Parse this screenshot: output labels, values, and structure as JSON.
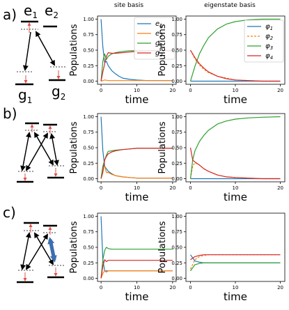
{
  "column_titles": [
    "site basis",
    "eigenstate basis"
  ],
  "row_labels": [
    "a)",
    "b)",
    "c)"
  ],
  "level_labels": {
    "e1": "e",
    "e1_sub": "1",
    "e2": "e",
    "e2_sub": "2",
    "g1": "g",
    "g1_sub": "1",
    "g2": "g",
    "g2_sub": "2"
  },
  "colors": {
    "blue": "#1f77b4",
    "orange": "#ff7f0e",
    "green": "#2ca02c",
    "red": "#d62728",
    "pump_red": "#e0504a",
    "thick_arrow": "#3d6fb0"
  },
  "legends": {
    "site": [
      "e_1",
      "e_2",
      "g_1",
      "g_2"
    ],
    "eigen": [
      "φ_1",
      "φ_2",
      "φ_3",
      "φ_4"
    ]
  },
  "chart_data": [
    {
      "id": "a-site",
      "type": "line",
      "title": "site basis",
      "xlabel": "time",
      "ylabel": "Populations",
      "xlim": [
        -1,
        21
      ],
      "ylim": [
        -0.05,
        1.05
      ],
      "xticks": [
        0,
        10,
        20
      ],
      "yticks": [
        0.0,
        0.25,
        0.5,
        0.75,
        1.0
      ],
      "legend": "top-right",
      "series": [
        {
          "name": "e_1",
          "color": "blue",
          "x": [
            0,
            0.5,
            1,
            1.5,
            2,
            3,
            4,
            5,
            6,
            8,
            10,
            13,
            16,
            20
          ],
          "y": [
            1.0,
            0.55,
            0.3,
            0.32,
            0.25,
            0.17,
            0.12,
            0.08,
            0.05,
            0.03,
            0.02,
            0.01,
            0.01,
            0.01
          ]
        },
        {
          "name": "e_2",
          "color": "orange",
          "x": [
            0,
            1,
            2,
            4,
            8,
            12,
            20
          ],
          "y": [
            0.0,
            0.02,
            0.01,
            0.01,
            0.01,
            0.01,
            0.01
          ]
        },
        {
          "name": "g_1",
          "color": "green",
          "x": [
            0,
            0.5,
            1,
            1.5,
            2,
            3,
            4,
            6,
            8,
            10,
            13,
            16,
            20
          ],
          "y": [
            0.0,
            0.32,
            0.44,
            0.35,
            0.4,
            0.44,
            0.46,
            0.48,
            0.49,
            0.49,
            0.49,
            0.49,
            0.49
          ]
        },
        {
          "name": "g_2",
          "color": "red",
          "x": [
            0,
            0.5,
            1,
            1.5,
            2,
            3,
            4,
            6,
            8,
            10,
            13,
            16,
            20
          ],
          "y": [
            0.0,
            0.15,
            0.28,
            0.4,
            0.46,
            0.45,
            0.45,
            0.46,
            0.47,
            0.48,
            0.49,
            0.49,
            0.49
          ]
        }
      ]
    },
    {
      "id": "a-eigen",
      "type": "line",
      "title": "eigenstate basis",
      "xlabel": "time",
      "ylabel": "Populations",
      "xlim": [
        -1,
        21
      ],
      "ylim": [
        -0.05,
        1.05
      ],
      "xticks": [
        0,
        10,
        20
      ],
      "yticks": [
        0.0,
        0.25,
        0.5,
        0.75,
        1.0
      ],
      "legend": "right",
      "series": [
        {
          "name": "φ_1",
          "color": "blue",
          "x": [
            0,
            20
          ],
          "y": [
            0.0,
            0.0
          ]
        },
        {
          "name": "φ_2",
          "color": "orange",
          "dashed": true,
          "x": [
            0,
            1,
            2,
            3,
            4,
            6,
            8,
            10,
            13,
            16,
            20
          ],
          "y": [
            0.5,
            0.36,
            0.26,
            0.19,
            0.14,
            0.08,
            0.05,
            0.02,
            0.01,
            0.0,
            0.0
          ]
        },
        {
          "name": "φ_3",
          "color": "green",
          "x": [
            0,
            1,
            2,
            3,
            4,
            6,
            8,
            10,
            13,
            16,
            20
          ],
          "y": [
            0.0,
            0.24,
            0.44,
            0.58,
            0.7,
            0.84,
            0.92,
            0.96,
            0.99,
            1.0,
            1.0
          ]
        },
        {
          "name": "φ_4",
          "color": "red",
          "x": [
            0,
            1,
            2,
            3,
            4,
            6,
            8,
            10,
            13,
            16,
            20
          ],
          "y": [
            0.5,
            0.38,
            0.28,
            0.21,
            0.15,
            0.08,
            0.04,
            0.02,
            0.01,
            0.0,
            0.0
          ]
        }
      ]
    },
    {
      "id": "b-site",
      "type": "line",
      "xlabel": "time",
      "ylabel": "Populations",
      "xlim": [
        -1,
        21
      ],
      "ylim": [
        -0.05,
        1.05
      ],
      "xticks": [
        0,
        10,
        20
      ],
      "yticks": [
        0.0,
        0.25,
        0.5,
        0.75,
        1.0
      ],
      "series": [
        {
          "name": "e_1",
          "color": "blue",
          "x": [
            0,
            0.5,
            1,
            1.5,
            2,
            3,
            4,
            6,
            8,
            10,
            13,
            16,
            20
          ],
          "y": [
            1.0,
            0.45,
            0.2,
            0.16,
            0.12,
            0.08,
            0.05,
            0.03,
            0.02,
            0.01,
            0.01,
            0.01,
            0.01
          ]
        },
        {
          "name": "e_2",
          "color": "orange",
          "x": [
            0,
            0.5,
            1,
            1.5,
            2,
            3,
            4,
            6,
            8,
            10,
            13,
            16,
            20
          ],
          "y": [
            0.0,
            0.2,
            0.2,
            0.1,
            0.1,
            0.07,
            0.05,
            0.03,
            0.02,
            0.01,
            0.01,
            0.01,
            0.01
          ]
        },
        {
          "name": "g_1",
          "color": "green",
          "x": [
            0,
            0.5,
            1,
            1.5,
            2,
            3,
            4,
            6,
            8,
            10,
            13,
            16,
            20
          ],
          "y": [
            0.0,
            0.2,
            0.3,
            0.38,
            0.44,
            0.45,
            0.46,
            0.47,
            0.48,
            0.49,
            0.49,
            0.49,
            0.49
          ]
        },
        {
          "name": "g_2",
          "color": "red",
          "x": [
            0,
            0.5,
            1,
            1.5,
            2,
            3,
            4,
            6,
            8,
            10,
            13,
            16,
            20
          ],
          "y": [
            0.0,
            0.1,
            0.3,
            0.36,
            0.4,
            0.43,
            0.45,
            0.47,
            0.48,
            0.49,
            0.49,
            0.49,
            0.49
          ]
        }
      ]
    },
    {
      "id": "b-eigen",
      "type": "line",
      "xlabel": "time",
      "ylabel": "Populations",
      "xlim": [
        -1,
        21
      ],
      "ylim": [
        -0.05,
        1.05
      ],
      "xticks": [
        0,
        10,
        20
      ],
      "yticks": [
        0.0,
        0.25,
        0.5,
        0.75,
        1.0
      ],
      "series": [
        {
          "name": "φ_1",
          "color": "blue",
          "x": [
            0,
            20
          ],
          "y": [
            0.0,
            0.0
          ]
        },
        {
          "name": "φ_2",
          "color": "orange",
          "dashed": true,
          "x": [
            0,
            0.5,
            1,
            2,
            3,
            4,
            6,
            8,
            10,
            13,
            16,
            20
          ],
          "y": [
            0.0,
            0.2,
            0.26,
            0.22,
            0.16,
            0.12,
            0.06,
            0.03,
            0.02,
            0.01,
            0.0,
            0.0
          ]
        },
        {
          "name": "φ_3",
          "color": "green",
          "x": [
            0,
            0.5,
            1,
            2,
            3,
            4,
            6,
            8,
            10,
            13,
            16,
            20
          ],
          "y": [
            0.0,
            0.3,
            0.45,
            0.6,
            0.7,
            0.78,
            0.88,
            0.93,
            0.96,
            0.98,
            0.99,
            1.0
          ]
        },
        {
          "name": "φ_4",
          "color": "red",
          "x": [
            0,
            0.5,
            1,
            2,
            3,
            4,
            6,
            8,
            10,
            13,
            16,
            20
          ],
          "y": [
            0.5,
            0.3,
            0.27,
            0.22,
            0.16,
            0.12,
            0.06,
            0.03,
            0.02,
            0.01,
            0.0,
            0.0
          ]
        }
      ]
    },
    {
      "id": "c-site",
      "type": "line",
      "xlabel": "time",
      "ylabel": "Populations",
      "xlim": [
        -1,
        21
      ],
      "ylim": [
        -0.05,
        1.05
      ],
      "xticks": [
        0,
        10,
        20
      ],
      "yticks": [
        0.0,
        0.25,
        0.5,
        0.75,
        1.0
      ],
      "series": [
        {
          "name": "e_1",
          "color": "blue",
          "x": [
            0,
            0.5,
            1,
            1.5,
            2,
            3,
            4,
            6,
            10,
            20
          ],
          "y": [
            1.0,
            0.3,
            0.12,
            0.12,
            0.12,
            0.12,
            0.12,
            0.12,
            0.12,
            0.12
          ]
        },
        {
          "name": "e_2",
          "color": "orange",
          "x": [
            0,
            0.5,
            1,
            1.5,
            2,
            3,
            4,
            6,
            10,
            20
          ],
          "y": [
            0.0,
            0.08,
            0.12,
            0.1,
            0.12,
            0.12,
            0.12,
            0.12,
            0.12,
            0.12
          ]
        },
        {
          "name": "g_1",
          "color": "green",
          "x": [
            0,
            0.5,
            1,
            1.5,
            2,
            3,
            4,
            6,
            10,
            20
          ],
          "y": [
            0.0,
            0.3,
            0.45,
            0.5,
            0.48,
            0.47,
            0.47,
            0.47,
            0.47,
            0.47
          ]
        },
        {
          "name": "g_2",
          "color": "red",
          "x": [
            0,
            0.5,
            1,
            1.5,
            2,
            3,
            4,
            6,
            10,
            20
          ],
          "y": [
            0.0,
            0.2,
            0.3,
            0.27,
            0.29,
            0.29,
            0.29,
            0.29,
            0.29,
            0.29
          ]
        }
      ]
    },
    {
      "id": "c-eigen",
      "type": "line",
      "xlabel": "time",
      "ylabel": "Populations",
      "xlim": [
        -1,
        21
      ],
      "ylim": [
        -0.05,
        1.05
      ],
      "xticks": [
        0,
        10,
        20
      ],
      "yticks": [
        0.0,
        0.25,
        0.5,
        0.75,
        1.0
      ],
      "series": [
        {
          "name": "φ_1",
          "color": "blue",
          "x": [
            0,
            1,
            2,
            3,
            4,
            6,
            10,
            20
          ],
          "y": [
            0.38,
            0.28,
            0.26,
            0.25,
            0.25,
            0.25,
            0.25,
            0.25
          ]
        },
        {
          "name": "φ_2",
          "color": "orange",
          "dashed": true,
          "x": [
            0,
            1,
            2,
            3,
            4,
            6,
            10,
            20
          ],
          "y": [
            0.15,
            0.3,
            0.35,
            0.37,
            0.38,
            0.38,
            0.38,
            0.38
          ]
        },
        {
          "name": "φ_3",
          "color": "green",
          "x": [
            0,
            1,
            2,
            3,
            4,
            6,
            10,
            20
          ],
          "y": [
            0.12,
            0.22,
            0.24,
            0.25,
            0.25,
            0.25,
            0.25,
            0.25
          ]
        },
        {
          "name": "φ_4",
          "color": "red",
          "x": [
            0,
            1,
            2,
            3,
            4,
            6,
            10,
            20
          ],
          "y": [
            0.3,
            0.35,
            0.37,
            0.38,
            0.38,
            0.38,
            0.38,
            0.38
          ]
        }
      ]
    }
  ]
}
